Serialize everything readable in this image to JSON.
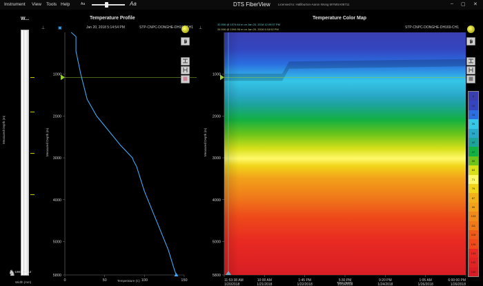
{
  "menu": {
    "items": [
      "Instrument",
      "View",
      "Tools",
      "Help"
    ],
    "zoom_small": "Aa",
    "zoom_large": "Aa"
  },
  "app": {
    "title": "DTS FiberView",
    "license": "Licensed to: Halliburton-Aaron Wong MYMSA06711"
  },
  "window": {
    "min": "–",
    "max": "▢",
    "close": "✕"
  },
  "well_panel": {
    "title": "W...",
    "ylabel": "Measured Depth (m)",
    "xlabel": "Width (mm)",
    "width_value": "-19813.9812"
  },
  "temp_profile": {
    "title": "Temperature Profile",
    "timestamp": "Jan 20, 2018 5:14:54 PM",
    "well_name": "STP-CNPC-DONGHE-DH169-CH1",
    "ylabel": "Measured Depth (m)",
    "xlabel": "Temperature (C)"
  },
  "color_map": {
    "title": "Temperature Color Map",
    "well_name": "STP-CNPC-DONGHE-DH169-CH1",
    "cursor1": "32.506 @ 1074.64 m on Jan 20, 2018 12:09:07 PM",
    "cursor2": "34.506 @ 1094.96 m on Jan 20, 2018 5:18:52 PM",
    "ylabel": "Measured Depth (m)",
    "xlabel": "Time (EST)",
    "legend_values": [
      "8",
      "10",
      "18",
      "26",
      "34",
      "42",
      "47",
      "55",
      "63",
      "71",
      "79",
      "87",
      "95",
      "103",
      "111",
      "118",
      "126",
      "134",
      "142",
      "150"
    ]
  },
  "chart_data": [
    {
      "type": "line",
      "title": "Temperature Profile",
      "xlabel": "Temperature (C)",
      "ylabel": "Measured Depth (m)",
      "xlim": [
        0,
        150
      ],
      "ylim": [
        5800,
        0
      ],
      "x_ticks": [
        "0",
        "50",
        "100",
        "150"
      ],
      "y_ticks": [
        "1000",
        "2000",
        "3000",
        "4000",
        "5000",
        "5800"
      ],
      "series": [
        {
          "name": "STP-CNPC-DONGHE-DH169-CH1",
          "x": [
            8,
            14,
            14,
            18,
            20,
            24,
            28,
            40,
            55,
            70,
            85,
            86,
            90,
            100,
            115,
            130,
            138,
            140
          ],
          "y": [
            0,
            100,
            450,
            820,
            1000,
            1300,
            1600,
            2000,
            2350,
            2700,
            3000,
            3060,
            3200,
            3800,
            4500,
            5200,
            5700,
            5800
          ]
        }
      ]
    },
    {
      "type": "heatmap",
      "title": "Temperature Color Map",
      "xlabel": "Time (EST)",
      "ylabel": "Measured Depth (m)",
      "ylim": [
        5800,
        0
      ],
      "y_ticks": [
        "1000",
        "2000",
        "3000",
        "4000",
        "5000",
        "5800"
      ],
      "time_ticks": [
        {
          "time": "11:53:38 AM",
          "date": "1/20/2018"
        },
        {
          "time": "10:00 AM",
          "date": "1/21/2018"
        },
        {
          "time": "1:45 PM",
          "date": "1/22/2018"
        },
        {
          "time": "5:30 PM",
          "date": "1/23/2018"
        },
        {
          "time": "9:20 PM",
          "date": "1/24/2018"
        },
        {
          "time": "1:05 AM",
          "date": "1/26/2018"
        },
        {
          "time": "6:00:00 PM",
          "date": "1/26/2018"
        }
      ],
      "color_scale_min": 8,
      "color_scale_max": 150
    }
  ],
  "colors": {
    "background": "#000000",
    "profile_line": "#3fa9f5",
    "cursor_line": "#9acd32"
  }
}
